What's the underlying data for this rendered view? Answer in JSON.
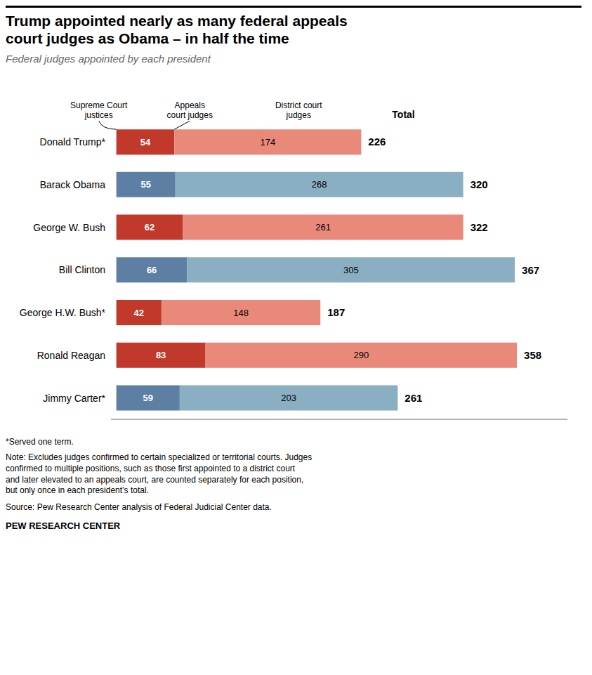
{
  "chart_data": {
    "type": "bar",
    "orientation": "horizontal",
    "stacked": true,
    "data_labels": true,
    "tick_labels": "y",
    "grid": false,
    "title": "Trump appointed nearly as many federal appeals\ncourt judges as Obama – in half the time",
    "subtitle": "Federal judges appointed by each president",
    "categories": [
      "Donald Trump*",
      "Barack Obama",
      "George W. Bush",
      "Bill Clinton",
      "George H.W. Bush*",
      "Ronald Reagan",
      "Jimmy Carter*"
    ],
    "series": [
      {
        "name": "Appeals\ncourt judges",
        "colors": [
          "#c0392b",
          "#5d7fa3",
          "#c0392b",
          "#5d7fa3",
          "#c0392b",
          "#c0392b",
          "#5d7fa3"
        ],
        "values": [
          54,
          55,
          62,
          66,
          42,
          83,
          59
        ]
      },
      {
        "name": "District court\njudges",
        "colors": [
          "#e8897a",
          "#8aafc2",
          "#e8897a",
          "#8aafc2",
          "#e8897a",
          "#e8897a",
          "#8aafc2"
        ],
        "values": [
          174,
          268,
          261,
          305,
          148,
          290,
          203
        ]
      }
    ],
    "totals": [
      226,
      320,
      322,
      367,
      187,
      358,
      261
    ],
    "xlim": [
      -5,
      420
    ],
    "annotations": [
      "Supreme Court\njustices",
      "Total"
    ],
    "footnotes": [
      "*Served one term.",
      "Note: Excludes judges confirmed to certain specialized or territorial courts. Judges\nconfirmed to multiple positions, such as those first appointed to a district court\nand later elevated to an appeals court, are counted separately for each position,\nbut only once in each president’s total.",
      "Source: Pew Research Center analysis of Federal Judicial Center data."
    ],
    "source_label": "PEW RESEARCH CENTER"
  }
}
